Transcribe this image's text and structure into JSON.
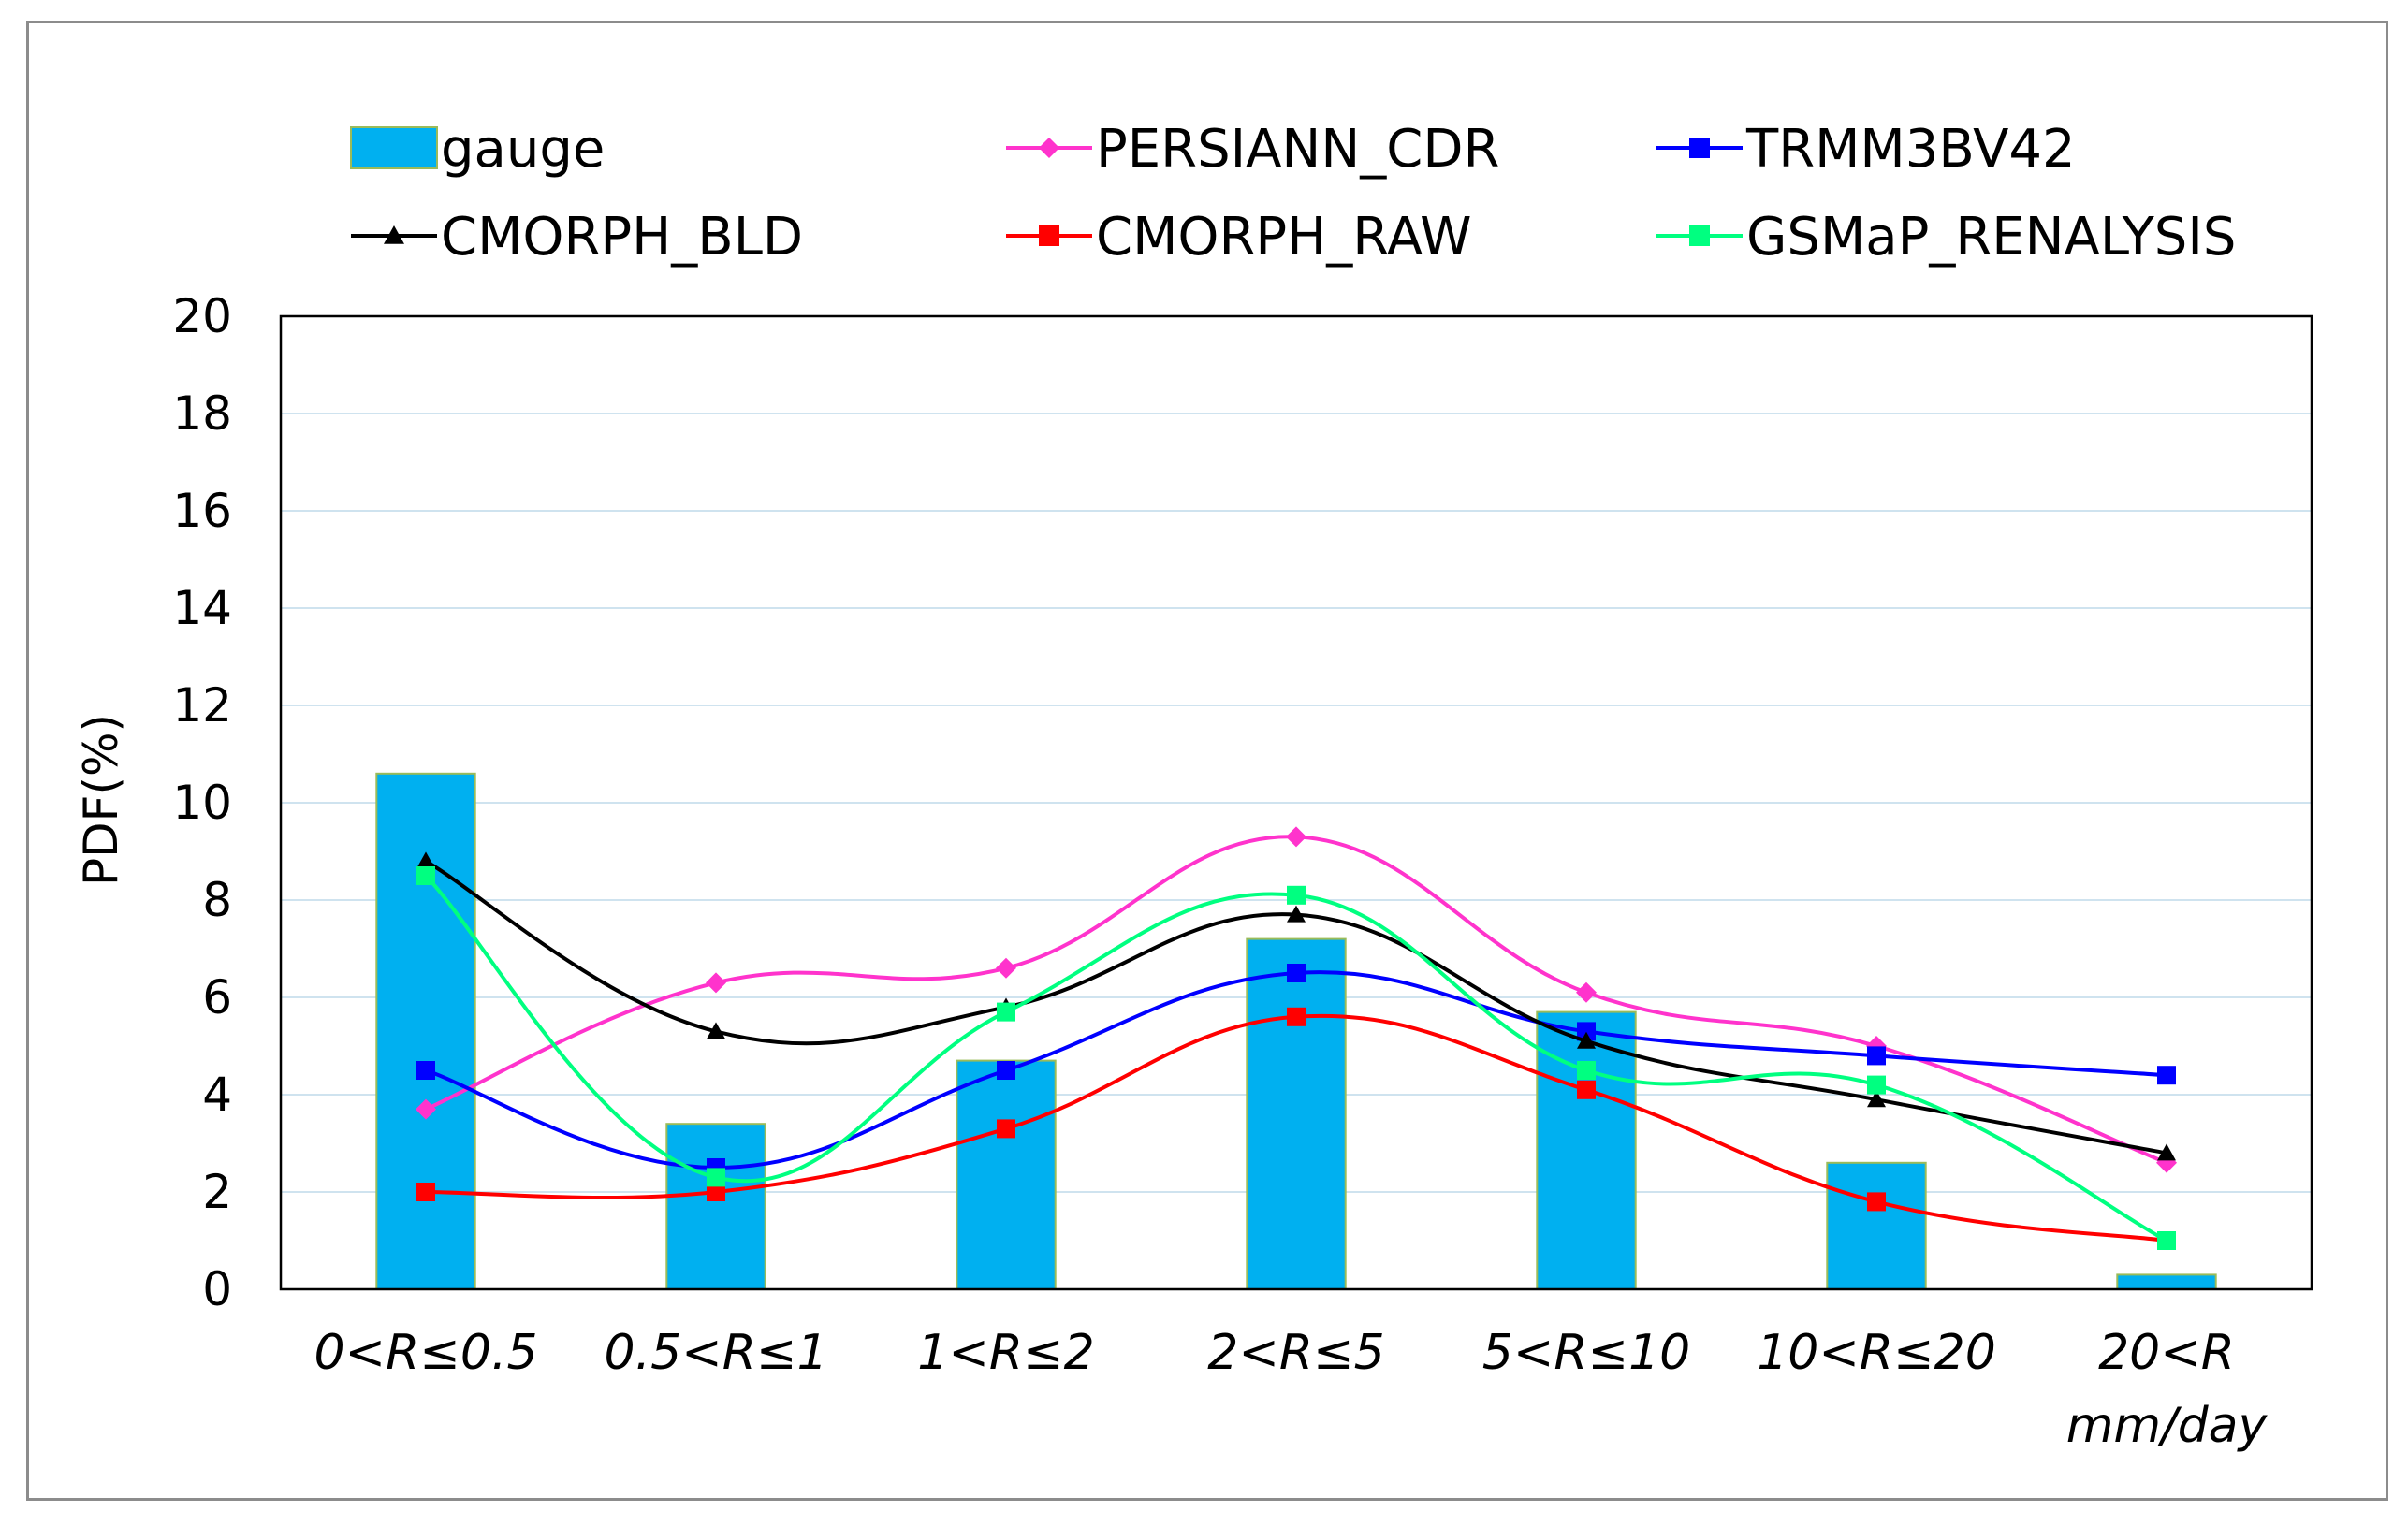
{
  "chart_data": {
    "type": "bar",
    "ylabel": "PDF(%)",
    "xlabel": "",
    "ylim": [
      0,
      20
    ],
    "yticks": [
      0,
      2,
      4,
      6,
      8,
      10,
      12,
      14,
      16,
      18,
      20
    ],
    "grid": true,
    "legend_position": "top",
    "categories": [
      "0<R≤0.5",
      "0.5<R≤1",
      "1<R≤2",
      "2<R≤5",
      "5<R≤10",
      "10<R≤20",
      "20<R"
    ],
    "x_unit_label": "mm/day",
    "bar_series": {
      "name": "gauge",
      "color": "#00b0f0",
      "values": [
        10.6,
        3.4,
        4.7,
        7.2,
        5.7,
        2.6,
        0.3
      ]
    },
    "line_series": [
      {
        "name": "PERSIANN_CDR",
        "color": "#ff33cc",
        "marker": "diamond",
        "values": [
          3.7,
          6.3,
          6.6,
          9.3,
          6.1,
          5.0,
          2.6
        ]
      },
      {
        "name": "TRMM3BV42",
        "color": "#0000ff",
        "marker": "square",
        "values": [
          4.5,
          2.5,
          4.5,
          6.5,
          5.3,
          4.8,
          4.4
        ]
      },
      {
        "name": "CMORPH_BLD",
        "color": "#000000",
        "marker": "triangle",
        "values": [
          8.8,
          5.3,
          5.8,
          7.7,
          5.1,
          3.9,
          2.8
        ]
      },
      {
        "name": "CMORPH_RAW",
        "color": "#ff0000",
        "marker": "square",
        "values": [
          2.0,
          2.0,
          3.3,
          5.6,
          4.1,
          1.8,
          1.0
        ]
      },
      {
        "name": "GSMaP_RENALYSIS",
        "color": "#00ff80",
        "marker": "square",
        "values": [
          8.5,
          2.3,
          5.7,
          8.1,
          4.5,
          4.2,
          1.0
        ]
      }
    ],
    "legend_order": [
      "gauge",
      "PERSIANN_CDR",
      "TRMM3BV42",
      "CMORPH_BLD",
      "CMORPH_RAW",
      "GSMaP_RENALYSIS"
    ]
  }
}
